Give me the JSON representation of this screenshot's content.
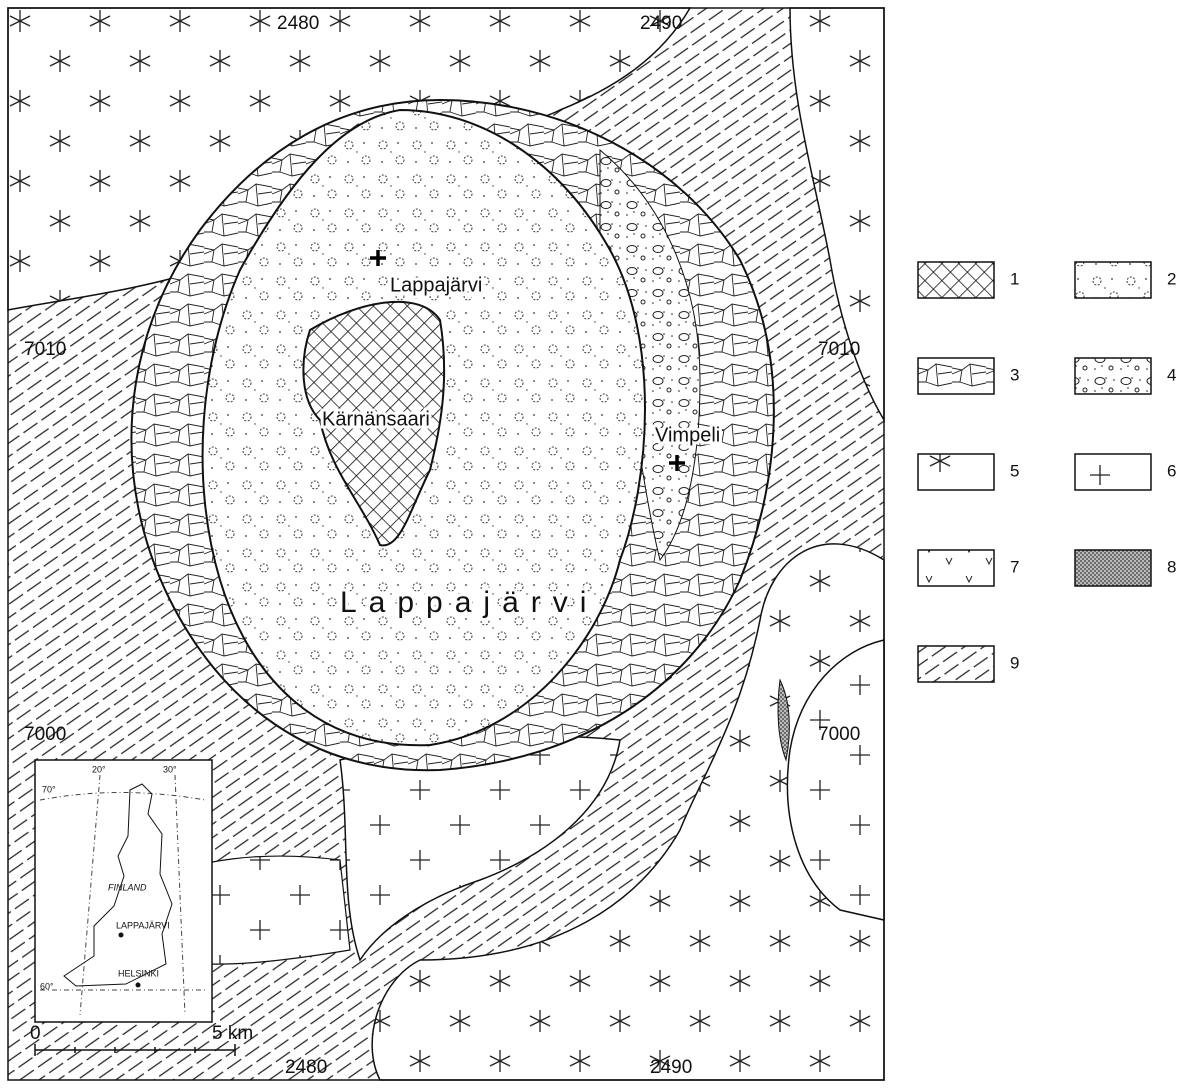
{
  "map": {
    "grid_labels": {
      "top": [
        "2480",
        "2490"
      ],
      "bottom": [
        "2480",
        "2490"
      ],
      "left": [
        "7010",
        "7000"
      ],
      "right": [
        "7010",
        "7000"
      ]
    },
    "places": {
      "north": "Lappajärvi",
      "island": "Kärnänsaari",
      "east": "Vimpeli",
      "lake": "Lappajärvi"
    },
    "inset": {
      "lat_labels": [
        "70°",
        "60°"
      ],
      "lon_labels": [
        "20°",
        "30°"
      ],
      "country": "FINLAND",
      "site": "LAPPAJÄRVI",
      "capital": "HELSINKI"
    },
    "scale": {
      "start": "0",
      "end": "5 km"
    }
  },
  "legend": [
    "1",
    "2",
    "3",
    "4",
    "5",
    "6",
    "7",
    "8",
    "9"
  ]
}
